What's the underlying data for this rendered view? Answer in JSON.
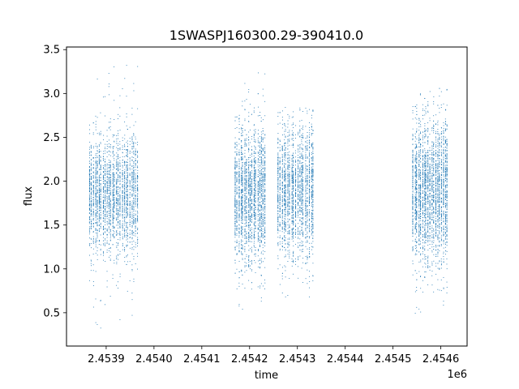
{
  "chart_data": {
    "type": "scatter",
    "title": "1SWASPJ160300.29-390410.0",
    "xlabel": "time",
    "ylabel": "flux",
    "x_offset_label": "1e6",
    "xlim": [
      2453817,
      2454655
    ],
    "ylim": [
      0.12,
      3.53
    ],
    "xticks": [
      2453900,
      2454000,
      2454100,
      2454200,
      2454300,
      2454400,
      2454500,
      2454600
    ],
    "xtick_labels": [
      "2.4539",
      "2.4540",
      "2.4541",
      "2.4542",
      "2.4543",
      "2.4544",
      "2.4545",
      "2.4546"
    ],
    "yticks": [
      0.5,
      1.0,
      1.5,
      2.0,
      2.5,
      3.0,
      3.5
    ],
    "ytick_labels": [
      "0.5",
      "1.0",
      "1.5",
      "2.0",
      "2.5",
      "3.0",
      "3.5"
    ],
    "grid": false,
    "marker_color": "#1f77b4",
    "series": [
      {
        "name": "",
        "segments": [
          {
            "x_start": 2453863,
            "x_end": 2453968,
            "flux_center": 1.85,
            "flux_core_low": 1.15,
            "flux_core_high": 2.35,
            "flux_min": 0.28,
            "flux_max": 3.37,
            "points": 2600
          },
          {
            "x_start": 2454168,
            "x_end": 2454235,
            "flux_center": 1.85,
            "flux_core_low": 1.1,
            "flux_core_high": 2.4,
            "flux_min": 0.5,
            "flux_max": 3.28,
            "points": 2400
          },
          {
            "x_start": 2454258,
            "x_end": 2454335,
            "flux_center": 1.9,
            "flux_core_low": 1.15,
            "flux_core_high": 2.45,
            "flux_min": 0.65,
            "flux_max": 2.85,
            "points": 2200
          },
          {
            "x_start": 2454540,
            "x_end": 2454615,
            "flux_center": 1.9,
            "flux_core_low": 1.05,
            "flux_core_high": 2.45,
            "flux_min": 0.47,
            "flux_max": 3.1,
            "points": 2800
          }
        ]
      }
    ]
  }
}
